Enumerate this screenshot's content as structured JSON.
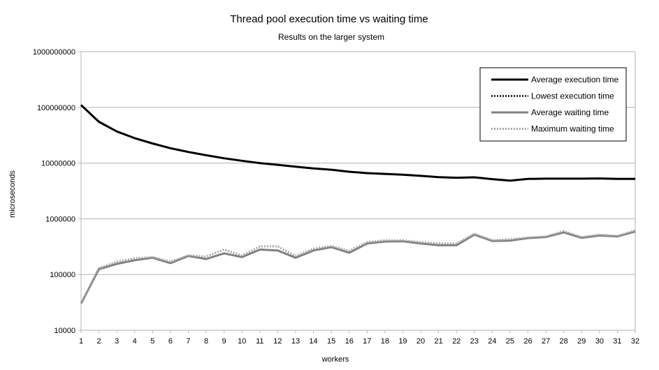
{
  "chart_data": {
    "type": "line",
    "title": "Thread pool execution time vs waiting time",
    "subtitle": "Results on the larger system",
    "xlabel": "workers",
    "ylabel": "microseconds",
    "yscale": "log",
    "ylim": [
      10000,
      1000000000
    ],
    "yticks": [
      "10000",
      "100000",
      "1000000",
      "10000000",
      "100000000",
      "1000000000"
    ],
    "grid": true,
    "legend_position": "top-right",
    "x": [
      1,
      2,
      3,
      4,
      5,
      6,
      7,
      8,
      9,
      10,
      11,
      12,
      13,
      14,
      15,
      16,
      17,
      18,
      19,
      20,
      21,
      22,
      23,
      24,
      25,
      26,
      27,
      28,
      29,
      30,
      31,
      32
    ],
    "series": [
      {
        "name": "Average execution time",
        "color": "#000000",
        "style": "solid",
        "values": [
          110000000,
          55000000,
          37000000,
          28000000,
          22500000,
          18500000,
          15800000,
          13800000,
          12200000,
          11000000,
          10000000,
          9300000,
          8600000,
          8000000,
          7600000,
          7000000,
          6600000,
          6400000,
          6200000,
          5900000,
          5600000,
          5450000,
          5550000,
          5150000,
          4850000,
          5200000,
          5250000,
          5250000,
          5250000,
          5300000,
          5200000,
          5200000
        ]
      },
      {
        "name": "Lowest execution time",
        "color": "#000000",
        "style": "dotted",
        "values": [
          110000000,
          55000000,
          37000000,
          28000000,
          22500000,
          18500000,
          15800000,
          13800000,
          12200000,
          11000000,
          10000000,
          9300000,
          8600000,
          8000000,
          7600000,
          7000000,
          6600000,
          6400000,
          6200000,
          5900000,
          5600000,
          5450000,
          5550000,
          5150000,
          4850000,
          5200000,
          5250000,
          5250000,
          5250000,
          5300000,
          5200000,
          5200000
        ]
      },
      {
        "name": "Average waiting time",
        "color": "#808080",
        "style": "solid",
        "values": [
          30000,
          125000,
          155000,
          180000,
          200000,
          160000,
          215000,
          190000,
          240000,
          205000,
          280000,
          270000,
          200000,
          270000,
          310000,
          245000,
          360000,
          390000,
          395000,
          360000,
          335000,
          335000,
          520000,
          400000,
          405000,
          450000,
          470000,
          570000,
          455000,
          500000,
          480000,
          590000
        ]
      },
      {
        "name": "Maximum waiting time",
        "color": "#a6a6a6",
        "style": "dotted",
        "values": [
          30000,
          130000,
          170000,
          195000,
          205000,
          170000,
          220000,
          210000,
          280000,
          220000,
          320000,
          320000,
          215000,
          290000,
          325000,
          265000,
          380000,
          410000,
          410000,
          380000,
          360000,
          360000,
          540000,
          410000,
          430000,
          460000,
          480000,
          600000,
          470000,
          520000,
          490000,
          620000
        ]
      }
    ]
  }
}
